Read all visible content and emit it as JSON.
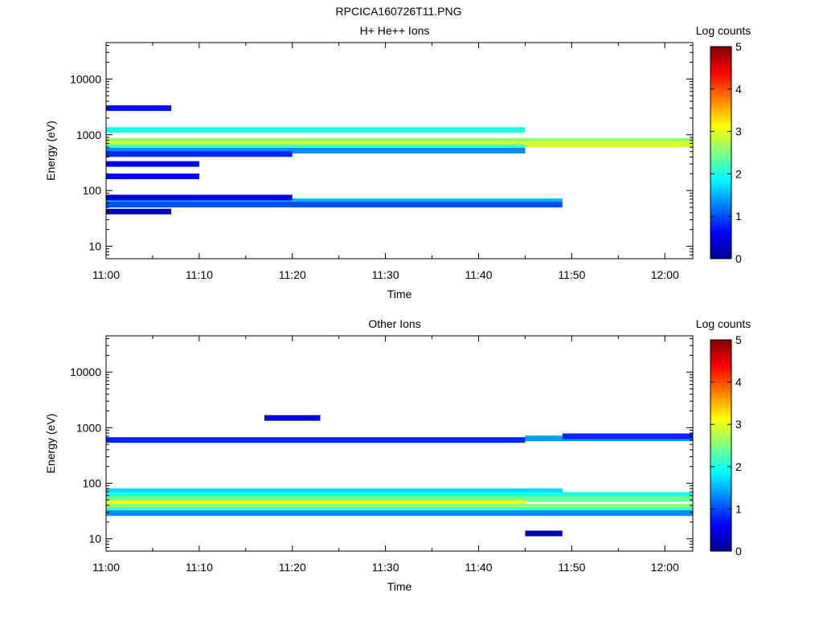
{
  "figure": {
    "title": "RPCICA160726T11.PNG"
  },
  "colormap": [
    "#00008f",
    "#0000ff",
    "#0080ff",
    "#00ffff",
    "#80ff80",
    "#ffff00",
    "#ff8000",
    "#ff0000",
    "#800000"
  ],
  "chart_data": [
    {
      "type": "heatmap",
      "title": "H+ He++ Ions",
      "xlabel": "Time",
      "ylabel": "Energy (eV)",
      "xlim": [
        "11:00",
        "12:03"
      ],
      "ylim": [
        6,
        45000
      ],
      "yscale": "log",
      "xticks": [
        "11:00",
        "11:10",
        "11:20",
        "11:30",
        "11:40",
        "11:50",
        "12:00"
      ],
      "yticks": [
        {
          "v": 10,
          "label": "10"
        },
        {
          "v": 100,
          "label": "100"
        },
        {
          "v": 1000,
          "label": "1000"
        },
        {
          "v": 10000,
          "label": "10000"
        }
      ],
      "colorbar": {
        "label": "Log counts",
        "range": [
          0,
          5
        ],
        "ticks": [
          "0",
          "1",
          "2",
          "3",
          "4",
          "5"
        ]
      },
      "columns": [
        "11:00",
        "11:03",
        "11:07",
        "11:10",
        "11:13",
        "11:17",
        "11:20",
        "11:23",
        "11:27",
        "11:30",
        "11:33",
        "11:36",
        "11:39",
        "11:42",
        "11:45",
        "11:49",
        "11:52",
        "11:55",
        "11:58",
        "12:01"
      ],
      "cells": [
        {
          "e": 1220,
          "lo": 0,
          "hi": 14,
          "v": 2.0
        },
        {
          "e": 780,
          "lo": 0,
          "hi": 20,
          "v": 2.6
        },
        {
          "e": 680,
          "lo": 0,
          "hi": 20,
          "v": 2.9
        },
        {
          "e": 600,
          "lo": 0,
          "hi": 14,
          "v": 2.2
        },
        {
          "e": 520,
          "lo": 0,
          "hi": 14,
          "v": 1.3
        },
        {
          "e": 450,
          "lo": 0,
          "hi": 6,
          "v": 0.8
        },
        {
          "e": 64,
          "lo": 0,
          "hi": 15,
          "v": 1.5
        },
        {
          "e": 56,
          "lo": 0,
          "hi": 15,
          "v": 1.0
        },
        {
          "e": 75,
          "lo": 0,
          "hi": 6,
          "v": 0.5
        },
        {
          "e": 42,
          "lo": 0,
          "hi": 2,
          "v": 0.3
        },
        {
          "e": 3000,
          "lo": 0,
          "hi": 2,
          "v": 0.7
        },
        {
          "e": 300,
          "lo": 0,
          "hi": 3,
          "v": 0.6
        },
        {
          "e": 180,
          "lo": 0,
          "hi": 3,
          "v": 0.6
        }
      ]
    },
    {
      "type": "heatmap",
      "title": "Other Ions",
      "xlabel": "Time",
      "ylabel": "Energy (eV)",
      "xlim": [
        "11:00",
        "12:03"
      ],
      "ylim": [
        6,
        45000
      ],
      "yscale": "log",
      "xticks": [
        "11:00",
        "11:10",
        "11:20",
        "11:30",
        "11:40",
        "11:50",
        "12:00"
      ],
      "yticks": [
        {
          "v": 10,
          "label": "10"
        },
        {
          "v": 100,
          "label": "100"
        },
        {
          "v": 1000,
          "label": "1000"
        },
        {
          "v": 10000,
          "label": "10000"
        }
      ],
      "colorbar": {
        "label": "Log counts",
        "range": [
          0,
          5
        ],
        "ticks": [
          "0",
          "1",
          "2",
          "3",
          "4",
          "5"
        ]
      },
      "columns": [
        "11:00",
        "11:03",
        "11:07",
        "11:10",
        "11:13",
        "11:17",
        "11:20",
        "11:23",
        "11:27",
        "11:30",
        "11:33",
        "11:36",
        "11:39",
        "11:42",
        "11:45",
        "11:49",
        "11:52",
        "11:55",
        "11:58",
        "12:01"
      ],
      "cells": [
        {
          "e": 72,
          "lo": 0,
          "hi": 15,
          "v": 1.7
        },
        {
          "e": 62,
          "lo": 0,
          "hi": 20,
          "v": 2.0
        },
        {
          "e": 52,
          "lo": 0,
          "hi": 20,
          "v": 2.4
        },
        {
          "e": 44,
          "lo": 0,
          "hi": 14,
          "v": 3.0
        },
        {
          "e": 38,
          "lo": 0,
          "hi": 20,
          "v": 2.6
        },
        {
          "e": 33,
          "lo": 0,
          "hi": 20,
          "v": 2.2
        },
        {
          "e": 29,
          "lo": 0,
          "hi": 20,
          "v": 1.3
        },
        {
          "e": 640,
          "lo": 14,
          "hi": 20,
          "v": 1.4
        },
        {
          "e": 700,
          "lo": 15,
          "hi": 20,
          "v": 0.8
        },
        {
          "e": 600,
          "lo": 0,
          "hi": 14,
          "v": 0.8
        },
        {
          "e": 12.5,
          "lo": 14,
          "hi": 15,
          "v": 0.2
        },
        {
          "e": 1500,
          "lo": 5,
          "hi": 7,
          "v": 0.4
        }
      ]
    }
  ]
}
